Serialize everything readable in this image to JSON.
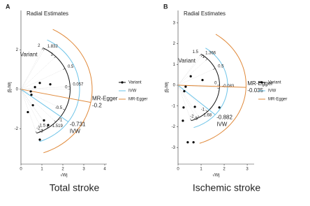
{
  "chart_data": [
    {
      "type": "scatter",
      "panel": "A",
      "title": "Radial Estimates",
      "caption": "Total stroke",
      "x_label": "√Wj",
      "y_label": "β̂j√Wj",
      "arc_title": "Variant",
      "x": [
        0.33,
        0.57,
        0.5,
        0.47,
        0.67,
        0.9,
        1.4,
        1.1,
        1.3,
        0.9
      ],
      "series": [
        {
          "name": "Variant",
          "color": "#000000",
          "values": [
            -1.16,
            -0.81,
            -0.28,
            -0.11,
            0.11,
            0.32,
            0.25,
            -1.58,
            -1.82,
            -2.56
          ]
        }
      ],
      "ivw": {
        "name": "IVW",
        "color": "#6ec4e8",
        "estimate": -0.731
      },
      "egger": {
        "name": "MR-Egger",
        "color": "#e08838",
        "estimate": -0.2
      },
      "arc_labels": [
        2,
        1.832,
        1,
        0.5,
        0,
        0.057,
        -0.5,
        -1,
        -1.5,
        -1.519,
        -2,
        -3
      ],
      "xlim": [
        0,
        4.1
      ],
      "ylim": [
        -3.8,
        4.0
      ],
      "xticks": [
        0,
        1,
        2,
        3,
        4
      ],
      "yticks": [
        -2,
        0,
        2
      ]
    },
    {
      "type": "scatter",
      "panel": "B",
      "title": "Radial Estimates",
      "caption": "Ischemic stroke",
      "x_label": "√Wj",
      "y_label": "β̂j√Wj",
      "arc_title": "Variant",
      "x": [
        0.55,
        0.33,
        0.27,
        1.06,
        0.24,
        0.73,
        1.79,
        0.21,
        0.42,
        0.67
      ],
      "series": [
        {
          "name": "Variant",
          "color": "#000000",
          "values": [
            0.43,
            -0.07,
            -0.29,
            0.25,
            -1.07,
            -1.04,
            -1.07,
            -1.71,
            -2.75,
            -2.75
          ]
        }
      ],
      "ivw": {
        "name": "IVW",
        "color": "#6ec4e8",
        "estimate": -0.882
      },
      "egger": {
        "name": "MR-Egger",
        "color": "#e08838",
        "estimate": -0.035
      },
      "arc_labels": [
        1.5,
        1.366,
        1,
        0.5,
        0,
        -0.083,
        -1,
        -1.68,
        -2,
        -3
      ],
      "xlim": [
        0,
        3.3
      ],
      "ylim": [
        -3.8,
        3.6
      ],
      "xticks": [
        0,
        1,
        2,
        3
      ],
      "yticks": [
        -3,
        -2,
        -1,
        0,
        1,
        2,
        3
      ]
    }
  ]
}
